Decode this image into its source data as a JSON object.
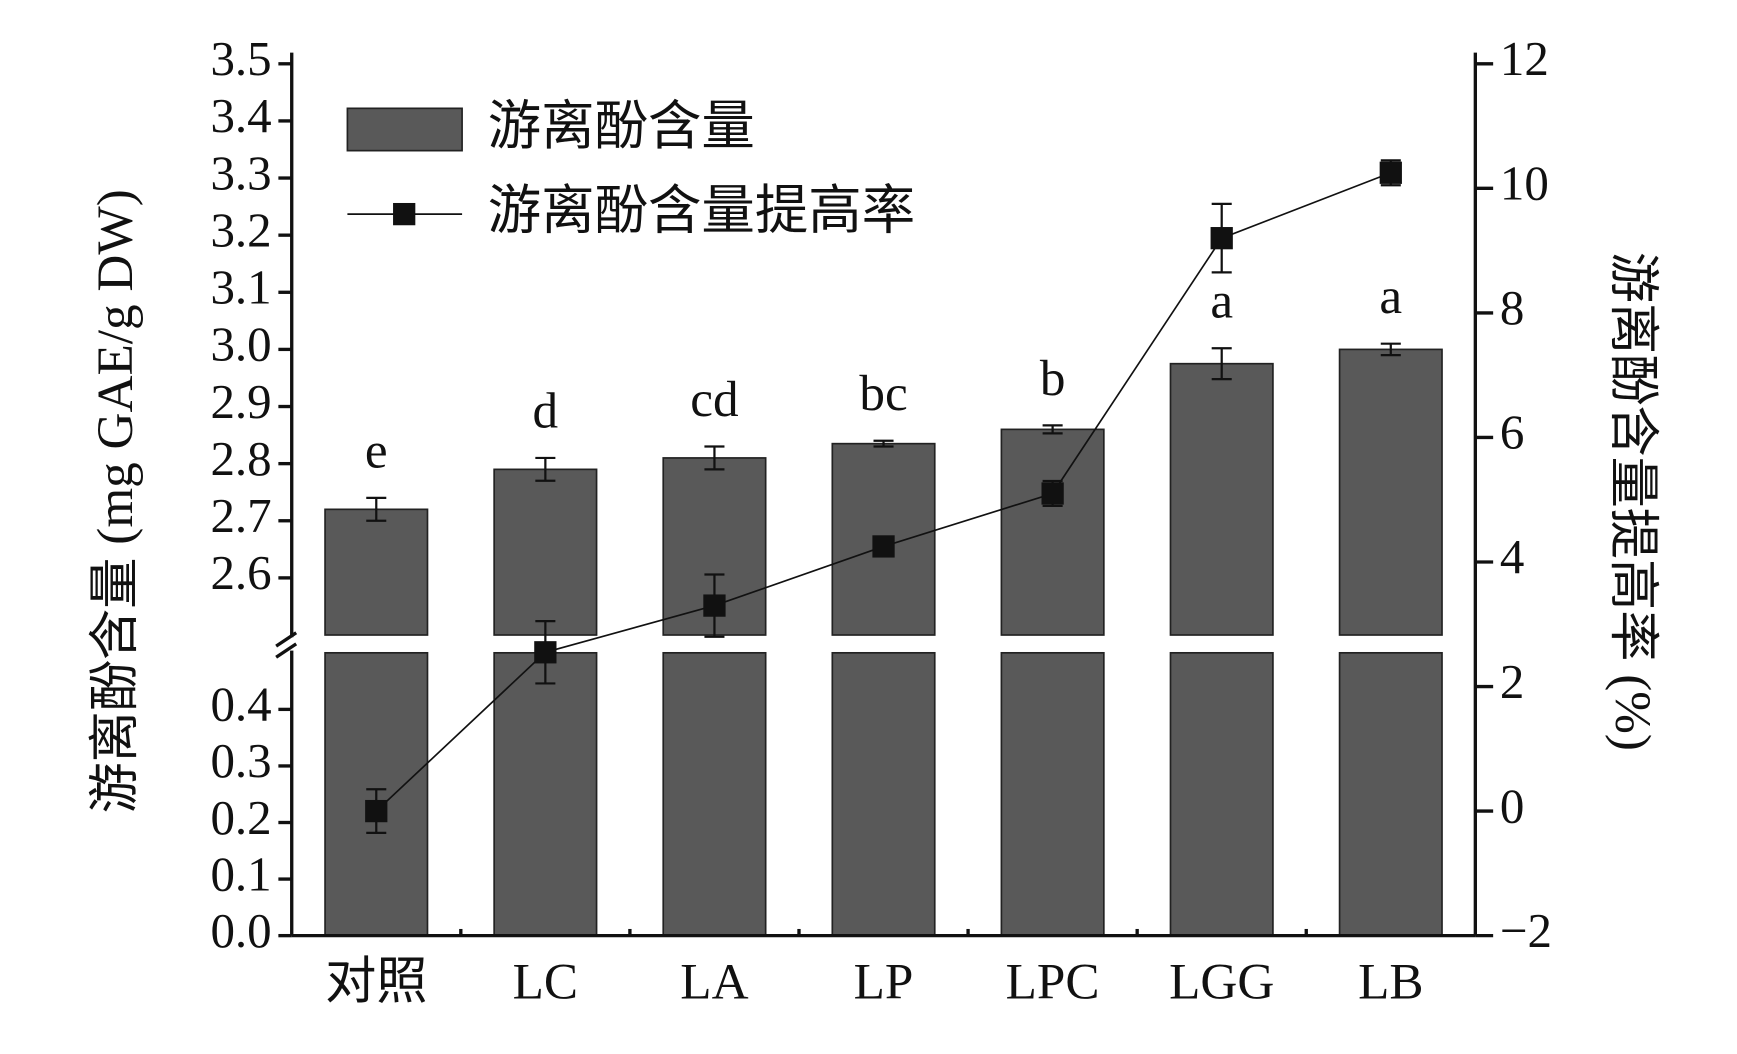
{
  "chart_data": {
    "type": "bar",
    "categories": [
      "对照",
      "LC",
      "LA",
      "LP",
      "LPC",
      "LGG",
      "LB"
    ],
    "series": [
      {
        "name": "游离酚含量",
        "type": "bar",
        "color": "#595959",
        "values": [
          2.72,
          2.79,
          2.81,
          2.835,
          2.86,
          2.975,
          3.0
        ],
        "errors": [
          0.02,
          0.02,
          0.02,
          0.005,
          0.007,
          0.027,
          0.01
        ],
        "value_labels": [
          "e",
          "d",
          "cd",
          "bc",
          "b",
          "a",
          "a"
        ]
      },
      {
        "name": "游离酚含量提高率",
        "type": "line",
        "axis": "y2",
        "color": "#111111",
        "values": [
          0,
          2.55,
          3.3,
          4.25,
          5.1,
          9.2,
          10.25
        ],
        "errors": [
          0.35,
          0.5,
          0.5,
          0.1,
          0.2,
          0.55,
          0.2
        ]
      }
    ],
    "ylabel": "游离酚含量 (mg GAE/g DW)",
    "y2label": "游离酚含量提高率 (%)",
    "ylim": [
      0,
      3.5
    ],
    "ybreak": [
      0.5,
      2.5
    ],
    "yticks": [
      {
        "value": 0,
        "label": "0.0"
      },
      0.1,
      0.2,
      0.3,
      0.4,
      2.6,
      2.7,
      2.8,
      2.9,
      {
        "value": 3,
        "label": "3.0"
      },
      3.1,
      3.2,
      3.3,
      3.4,
      3.5
    ],
    "y2lim": [
      -2,
      12
    ],
    "y2ticks": [
      {
        "value": -2,
        "label": "−2"
      },
      0,
      2,
      4,
      6,
      8,
      10,
      12
    ],
    "legend": "upper left",
    "grid": false
  }
}
